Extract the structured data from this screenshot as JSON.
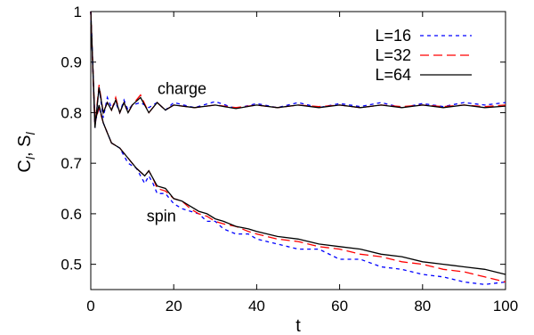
{
  "chart_data": {
    "type": "line",
    "title": "",
    "xlabel": "t",
    "ylabel": "C",
    "ylabel_sub1": "l",
    "ylabel_sep": ", S",
    "ylabel_sub2": "l",
    "xlim": [
      0,
      100
    ],
    "ylim": [
      0.45,
      1.0
    ],
    "x_ticks": [
      0,
      20,
      40,
      60,
      80,
      100
    ],
    "y_ticks": [
      0.5,
      0.6,
      0.7,
      0.8,
      0.9,
      1
    ],
    "grid": false,
    "legend_position": "top-right",
    "annotations": [
      {
        "text": "charge",
        "x": 22,
        "y": 0.837
      },
      {
        "text": "spin",
        "x": 17,
        "y": 0.585
      }
    ],
    "series": [
      {
        "name": "L=16",
        "group": "charge",
        "color": "#0000ff",
        "dash": "4,4",
        "x": [
          0,
          1,
          2,
          3,
          4,
          5,
          6,
          7,
          8,
          9,
          10,
          12,
          14,
          16,
          18,
          20,
          25,
          30,
          35,
          40,
          45,
          50,
          55,
          60,
          65,
          70,
          75,
          80,
          85,
          90,
          95,
          100
        ],
        "y": [
          1.0,
          0.77,
          0.85,
          0.79,
          0.83,
          0.81,
          0.82,
          0.8,
          0.825,
          0.805,
          0.815,
          0.82,
          0.81,
          0.82,
          0.805,
          0.82,
          0.81,
          0.822,
          0.808,
          0.818,
          0.81,
          0.82,
          0.81,
          0.818,
          0.812,
          0.82,
          0.81,
          0.818,
          0.812,
          0.82,
          0.815,
          0.82
        ]
      },
      {
        "name": "L=32",
        "group": "charge",
        "color": "#ff0000",
        "dash": "10,5",
        "x": [
          0,
          1,
          2,
          3,
          4,
          5,
          6,
          7,
          8,
          9,
          10,
          12,
          14,
          16,
          18,
          20,
          25,
          30,
          35,
          40,
          45,
          50,
          55,
          60,
          65,
          70,
          75,
          80,
          85,
          90,
          95,
          100
        ],
        "y": [
          1.0,
          0.775,
          0.855,
          0.8,
          0.82,
          0.805,
          0.83,
          0.8,
          0.82,
          0.8,
          0.815,
          0.835,
          0.8,
          0.82,
          0.805,
          0.815,
          0.81,
          0.815,
          0.81,
          0.815,
          0.81,
          0.815,
          0.812,
          0.815,
          0.81,
          0.815,
          0.812,
          0.815,
          0.812,
          0.815,
          0.812,
          0.815
        ]
      },
      {
        "name": "L=64",
        "group": "charge",
        "color": "#000000",
        "dash": "",
        "x": [
          0,
          1,
          2,
          3,
          4,
          5,
          6,
          7,
          8,
          9,
          10,
          12,
          14,
          16,
          18,
          20,
          25,
          30,
          35,
          40,
          45,
          50,
          55,
          60,
          65,
          70,
          75,
          80,
          85,
          90,
          95,
          100
        ],
        "y": [
          1.0,
          0.77,
          0.85,
          0.8,
          0.82,
          0.805,
          0.825,
          0.8,
          0.82,
          0.8,
          0.815,
          0.83,
          0.8,
          0.82,
          0.805,
          0.815,
          0.81,
          0.815,
          0.808,
          0.815,
          0.81,
          0.815,
          0.81,
          0.815,
          0.81,
          0.815,
          0.81,
          0.815,
          0.81,
          0.815,
          0.81,
          0.813
        ]
      },
      {
        "name": "L=16",
        "group": "spin",
        "color": "#0000ff",
        "dash": "4,4",
        "x": [
          0,
          1,
          2,
          3,
          4,
          5,
          7,
          9,
          11,
          13,
          14,
          15,
          16,
          18,
          20,
          22,
          24,
          26,
          28,
          30,
          32,
          35,
          38,
          40,
          45,
          50,
          55,
          60,
          65,
          70,
          75,
          80,
          85,
          90,
          95,
          100
        ],
        "y": [
          1.0,
          0.78,
          0.81,
          0.78,
          0.76,
          0.74,
          0.73,
          0.7,
          0.69,
          0.66,
          0.675,
          0.66,
          0.64,
          0.64,
          0.62,
          0.61,
          0.605,
          0.6,
          0.585,
          0.585,
          0.57,
          0.56,
          0.56,
          0.55,
          0.54,
          0.53,
          0.53,
          0.51,
          0.51,
          0.495,
          0.49,
          0.48,
          0.475,
          0.465,
          0.46,
          0.465
        ]
      },
      {
        "name": "L=32",
        "group": "spin",
        "color": "#ff0000",
        "dash": "10,5",
        "x": [
          0,
          1,
          2,
          3,
          4,
          5,
          7,
          9,
          11,
          13,
          14,
          15,
          16,
          18,
          20,
          22,
          24,
          26,
          28,
          30,
          32,
          35,
          38,
          40,
          45,
          50,
          55,
          60,
          65,
          70,
          75,
          80,
          85,
          90,
          95,
          100
        ],
        "y": [
          1.0,
          0.78,
          0.81,
          0.78,
          0.76,
          0.74,
          0.73,
          0.71,
          0.69,
          0.675,
          0.685,
          0.67,
          0.65,
          0.645,
          0.63,
          0.625,
          0.61,
          0.6,
          0.595,
          0.585,
          0.58,
          0.575,
          0.565,
          0.56,
          0.55,
          0.545,
          0.535,
          0.53,
          0.52,
          0.515,
          0.505,
          0.5,
          0.49,
          0.485,
          0.475,
          0.465
        ]
      },
      {
        "name": "L=64",
        "group": "spin",
        "color": "#000000",
        "dash": "",
        "x": [
          0,
          1,
          2,
          3,
          4,
          5,
          7,
          9,
          11,
          13,
          14,
          15,
          16,
          18,
          20,
          22,
          24,
          26,
          28,
          30,
          32,
          35,
          38,
          40,
          45,
          50,
          55,
          60,
          65,
          70,
          75,
          80,
          85,
          90,
          95,
          100
        ],
        "y": [
          1.0,
          0.78,
          0.815,
          0.78,
          0.76,
          0.74,
          0.73,
          0.71,
          0.69,
          0.675,
          0.685,
          0.67,
          0.655,
          0.65,
          0.63,
          0.625,
          0.615,
          0.605,
          0.6,
          0.59,
          0.585,
          0.575,
          0.57,
          0.565,
          0.555,
          0.55,
          0.54,
          0.535,
          0.53,
          0.52,
          0.515,
          0.505,
          0.5,
          0.495,
          0.49,
          0.48
        ]
      }
    ],
    "legend": [
      {
        "name": "L=16",
        "color": "#0000ff",
        "dash": "4,4"
      },
      {
        "name": "L=32",
        "color": "#ff0000",
        "dash": "10,5"
      },
      {
        "name": "L=64",
        "color": "#000000",
        "dash": ""
      }
    ]
  }
}
